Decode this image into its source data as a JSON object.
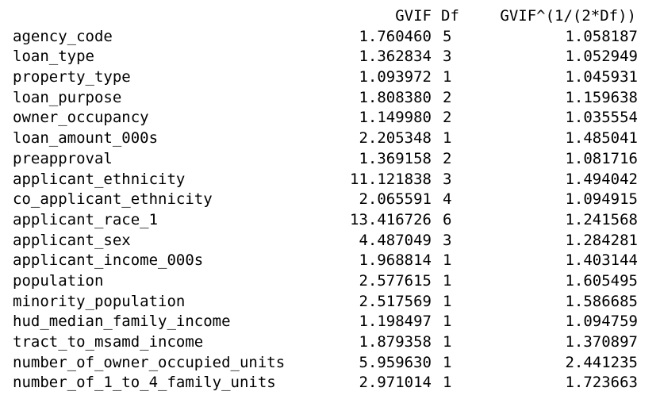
{
  "table": {
    "headers": [
      "",
      "GVIF",
      "Df",
      "GVIF^(1/(2*Df))"
    ],
    "rows": [
      [
        "agency_code",
        "1.760460",
        "5",
        "1.058187"
      ],
      [
        "loan_type",
        "1.362834",
        "3",
        "1.052949"
      ],
      [
        "property_type",
        "1.093972",
        "1",
        "1.045931"
      ],
      [
        "loan_purpose",
        "1.808380",
        "2",
        "1.159638"
      ],
      [
        "owner_occupancy",
        "1.149980",
        "2",
        "1.035554"
      ],
      [
        "loan_amount_000s",
        "2.205348",
        "1",
        "1.485041"
      ],
      [
        "preapproval",
        "1.369158",
        "2",
        "1.081716"
      ],
      [
        "applicant_ethnicity",
        "11.121838",
        "3",
        "1.494042"
      ],
      [
        "co_applicant_ethnicity",
        "2.065591",
        "4",
        "1.094915"
      ],
      [
        "applicant_race_1",
        "13.416726",
        "6",
        "1.241568"
      ],
      [
        "applicant_sex",
        "4.487049",
        "3",
        "1.284281"
      ],
      [
        "applicant_income_000s",
        "1.968814",
        "1",
        "1.403144"
      ],
      [
        "population",
        "2.577615",
        "1",
        "1.605495"
      ],
      [
        "minority_population",
        "2.517569",
        "1",
        "1.586685"
      ],
      [
        "hud_median_family_income",
        "1.198497",
        "1",
        "1.094759"
      ],
      [
        "tract_to_msamd_income",
        "1.879358",
        "1",
        "1.370897"
      ],
      [
        "number_of_owner_occupied_units",
        "5.959630",
        "1",
        "2.441235"
      ],
      [
        "number_of_1_to_4_family_units",
        "2.971014",
        "1",
        "1.723663"
      ]
    ]
  }
}
